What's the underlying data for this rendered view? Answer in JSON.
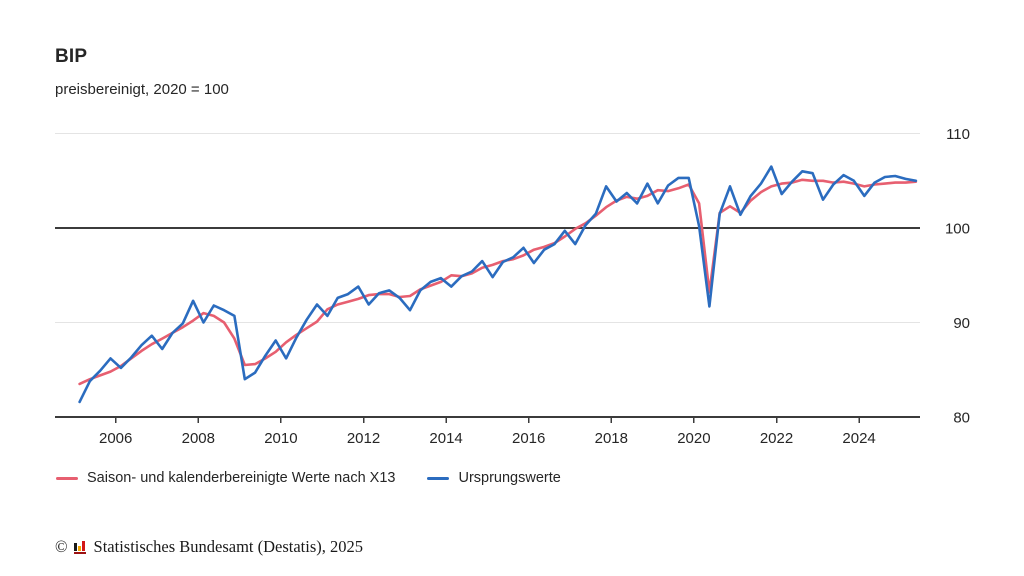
{
  "header": {
    "title": "BIP",
    "subtitle": "preisbereinigt, 2020 = 100"
  },
  "footer": {
    "copyright_symbol": "©",
    "source_text": "Statistisches Bundesamt (Destatis), 2025",
    "logo": "destatis-bars-icon"
  },
  "chart_data": {
    "type": "line",
    "title": "BIP",
    "subtitle": "preisbereinigt, 2020 = 100",
    "x_start_year": 2005,
    "frequency": "quarterly",
    "x_ticks": [
      2006,
      2008,
      2010,
      2012,
      2014,
      2016,
      2018,
      2020,
      2022,
      2024
    ],
    "y_ticks": [
      80,
      90,
      100,
      110
    ],
    "ylim": [
      80,
      110
    ],
    "baseline": 100,
    "grid": "horizontal",
    "legend_position": "bottom",
    "style": {
      "grid_color": "#e4e4e4",
      "axis_color": "#3b3b3b",
      "text_color": "#262626",
      "background": "#ffffff"
    },
    "series": [
      {
        "name": "Saison- und kalenderbereinigte Werte nach X13",
        "color": "#e75f70",
        "values": [
          83.5,
          84.0,
          84.4,
          84.8,
          85.4,
          86.2,
          87.0,
          87.7,
          88.3,
          88.9,
          89.5,
          90.2,
          91.0,
          90.7,
          90.0,
          88.3,
          85.5,
          85.6,
          86.2,
          86.9,
          87.9,
          88.7,
          89.4,
          90.1,
          91.4,
          91.9,
          92.2,
          92.5,
          92.9,
          93.0,
          93.0,
          92.7,
          92.8,
          93.5,
          93.9,
          94.3,
          95.0,
          94.9,
          95.2,
          95.8,
          96.1,
          96.5,
          96.7,
          97.1,
          97.7,
          98.0,
          98.4,
          99.1,
          99.9,
          100.5,
          101.3,
          102.2,
          102.9,
          103.3,
          103.1,
          103.4,
          104.0,
          103.9,
          104.2,
          104.6,
          102.6,
          93.2,
          101.6,
          102.3,
          101.6,
          102.9,
          103.8,
          104.4,
          104.7,
          104.8,
          105.1,
          105.0,
          105.0,
          104.8,
          104.9,
          104.7,
          104.4,
          104.6,
          104.7,
          104.8,
          104.8,
          104.9
        ]
      },
      {
        "name": "Ursprungswerte",
        "color": "#2b6cbf",
        "values": [
          81.6,
          83.8,
          84.9,
          86.2,
          85.2,
          86.3,
          87.6,
          88.6,
          87.2,
          88.9,
          89.9,
          92.3,
          90.0,
          91.8,
          91.3,
          90.7,
          84.0,
          84.7,
          86.5,
          88.1,
          86.2,
          88.4,
          90.3,
          91.9,
          90.7,
          92.6,
          93.0,
          93.8,
          91.9,
          93.1,
          93.4,
          92.6,
          91.3,
          93.4,
          94.3,
          94.7,
          93.8,
          94.9,
          95.4,
          96.5,
          94.8,
          96.4,
          96.9,
          97.9,
          96.3,
          97.7,
          98.3,
          99.7,
          98.3,
          100.3,
          101.5,
          104.4,
          102.8,
          103.7,
          102.6,
          104.7,
          102.6,
          104.5,
          105.3,
          105.3,
          100.2,
          91.7,
          101.5,
          104.4,
          101.4,
          103.4,
          104.7,
          106.5,
          103.6,
          104.9,
          106.0,
          105.8,
          103.0,
          104.6,
          105.6,
          105.0,
          103.4,
          104.8,
          105.4,
          105.5,
          105.2,
          105.0
        ]
      }
    ]
  }
}
